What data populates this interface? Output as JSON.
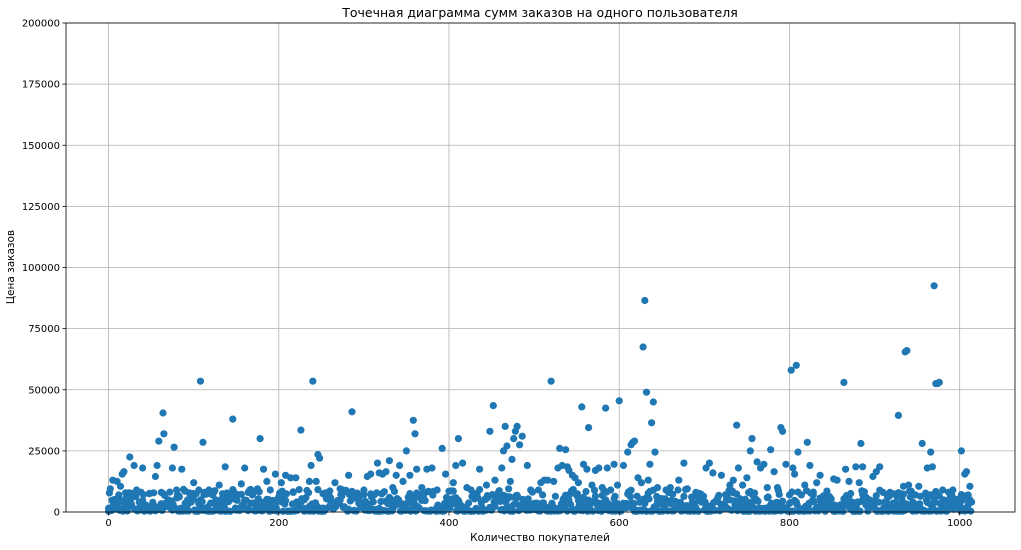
{
  "chart_data": {
    "type": "scatter",
    "title": "Точечная диаграмма сумм заказов на одного пользователя",
    "xlabel": "Количество покупателей",
    "ylabel": "Цена заказов",
    "xlim": [
      -50,
      1065
    ],
    "ylim": [
      0,
      200000
    ],
    "xticks": [
      0,
      200,
      400,
      600,
      800,
      1000
    ],
    "yticks": [
      0,
      25000,
      50000,
      75000,
      100000,
      125000,
      150000,
      175000,
      200000
    ],
    "grid": true,
    "color": "#1f77b4",
    "series": [
      {
        "points": [
          [
            0,
            1500
          ],
          [
            2,
            9500
          ],
          [
            5,
            13000
          ],
          [
            8,
            4000
          ],
          [
            10,
            12500
          ],
          [
            12,
            7000
          ],
          [
            14,
            10500
          ],
          [
            16,
            15500
          ],
          [
            18,
            16500
          ],
          [
            20,
            3500
          ],
          [
            24,
            5500
          ],
          [
            25,
            22500
          ],
          [
            28,
            6000
          ],
          [
            30,
            19000
          ],
          [
            33,
            9000
          ],
          [
            36,
            4000
          ],
          [
            40,
            18000
          ],
          [
            44,
            2500
          ],
          [
            48,
            7500
          ],
          [
            52,
            3000
          ],
          [
            55,
            14500
          ],
          [
            57,
            19000
          ],
          [
            59,
            29000
          ],
          [
            62,
            8000
          ],
          [
            64,
            40500
          ],
          [
            65,
            32000
          ],
          [
            70,
            5000
          ],
          [
            75,
            18000
          ],
          [
            77,
            26500
          ],
          [
            80,
            9000
          ],
          [
            83,
            6500
          ],
          [
            86,
            17500
          ],
          [
            90,
            8500
          ],
          [
            93,
            5000
          ],
          [
            97,
            4000
          ],
          [
            100,
            12000
          ],
          [
            103,
            7500
          ],
          [
            106,
            9000
          ],
          [
            108,
            53500
          ],
          [
            111,
            28500
          ],
          [
            113,
            8000
          ],
          [
            118,
            9000
          ],
          [
            122,
            7000
          ],
          [
            126,
            5000
          ],
          [
            130,
            11000
          ],
          [
            134,
            7500
          ],
          [
            137,
            18500
          ],
          [
            140,
            6500
          ],
          [
            146,
            38000
          ],
          [
            150,
            5500
          ],
          [
            156,
            11500
          ],
          [
            160,
            18000
          ],
          [
            164,
            8000
          ],
          [
            170,
            3500
          ],
          [
            175,
            9500
          ],
          [
            178,
            30000
          ],
          [
            182,
            17500
          ],
          [
            186,
            12500
          ],
          [
            190,
            9000
          ],
          [
            196,
            15500
          ],
          [
            200,
            6000
          ],
          [
            203,
            12000
          ],
          [
            208,
            15000
          ],
          [
            214,
            14000
          ],
          [
            217,
            8000
          ],
          [
            220,
            14000
          ],
          [
            226,
            33500
          ],
          [
            230,
            5000
          ],
          [
            236,
            12500
          ],
          [
            238,
            19000
          ],
          [
            240,
            53500
          ],
          [
            244,
            12500
          ],
          [
            246,
            23500
          ],
          [
            248,
            22000
          ],
          [
            252,
            7500
          ],
          [
            256,
            6000
          ],
          [
            260,
            2500
          ],
          [
            266,
            12000
          ],
          [
            272,
            9500
          ],
          [
            276,
            8000
          ],
          [
            282,
            15000
          ],
          [
            286,
            41000
          ],
          [
            290,
            7000
          ],
          [
            296,
            4000
          ],
          [
            300,
            9000
          ],
          [
            304,
            14500
          ],
          [
            308,
            15500
          ],
          [
            312,
            7000
          ],
          [
            316,
            20000
          ],
          [
            318,
            16000
          ],
          [
            322,
            15500
          ],
          [
            326,
            16500
          ],
          [
            330,
            21000
          ],
          [
            334,
            10000
          ],
          [
            338,
            15000
          ],
          [
            342,
            19000
          ],
          [
            346,
            12500
          ],
          [
            350,
            25000
          ],
          [
            354,
            15000
          ],
          [
            358,
            37500
          ],
          [
            360,
            32000
          ],
          [
            362,
            17500
          ],
          [
            368,
            10000
          ],
          [
            374,
            17500
          ],
          [
            380,
            18000
          ],
          [
            386,
            9000
          ],
          [
            392,
            26000
          ],
          [
            396,
            15500
          ],
          [
            400,
            8500
          ],
          [
            405,
            12000
          ],
          [
            408,
            19000
          ],
          [
            411,
            30000
          ],
          [
            416,
            20000
          ],
          [
            421,
            10000
          ],
          [
            426,
            9000
          ],
          [
            431,
            7500
          ],
          [
            436,
            17500
          ],
          [
            444,
            11000
          ],
          [
            448,
            33000
          ],
          [
            452,
            43500
          ],
          [
            454,
            13000
          ],
          [
            458,
            8000
          ],
          [
            462,
            18000
          ],
          [
            464,
            25000
          ],
          [
            466,
            35000
          ],
          [
            468,
            27000
          ],
          [
            470,
            9500
          ],
          [
            472,
            12500
          ],
          [
            474,
            21500
          ],
          [
            476,
            30000
          ],
          [
            478,
            33000
          ],
          [
            480,
            35000
          ],
          [
            483,
            27500
          ],
          [
            486,
            31000
          ],
          [
            492,
            19000
          ],
          [
            496,
            9000
          ],
          [
            500,
            3500
          ],
          [
            505,
            9000
          ],
          [
            508,
            12000
          ],
          [
            512,
            13000
          ],
          [
            516,
            13000
          ],
          [
            520,
            53500
          ],
          [
            523,
            12500
          ],
          [
            528,
            18000
          ],
          [
            530,
            26000
          ],
          [
            533,
            19000
          ],
          [
            537,
            25500
          ],
          [
            539,
            18500
          ],
          [
            541,
            17000
          ],
          [
            545,
            15000
          ],
          [
            548,
            14000
          ],
          [
            552,
            12000
          ],
          [
            556,
            43000
          ],
          [
            558,
            19500
          ],
          [
            562,
            17500
          ],
          [
            564,
            34500
          ],
          [
            568,
            11000
          ],
          [
            572,
            17000
          ],
          [
            576,
            18000
          ],
          [
            580,
            10000
          ],
          [
            584,
            42500
          ],
          [
            586,
            18000
          ],
          [
            590,
            9000
          ],
          [
            594,
            19500
          ],
          [
            598,
            11000
          ],
          [
            600,
            45500
          ],
          [
            605,
            19000
          ],
          [
            610,
            24500
          ],
          [
            614,
            27500
          ],
          [
            616,
            28500
          ],
          [
            618,
            29000
          ],
          [
            622,
            14000
          ],
          [
            626,
            12000
          ],
          [
            628,
            67500
          ],
          [
            630,
            86500
          ],
          [
            632,
            49000
          ],
          [
            634,
            13000
          ],
          [
            636,
            19500
          ],
          [
            638,
            36500
          ],
          [
            640,
            45000
          ],
          [
            642,
            24500
          ],
          [
            645,
            10000
          ],
          [
            650,
            5500
          ],
          [
            655,
            9000
          ],
          [
            660,
            10000
          ],
          [
            665,
            4000
          ],
          [
            670,
            13000
          ],
          [
            676,
            20000
          ],
          [
            680,
            9500
          ],
          [
            686,
            4000
          ],
          [
            690,
            8000
          ],
          [
            696,
            5000
          ],
          [
            702,
            18000
          ],
          [
            706,
            20000
          ],
          [
            710,
            16000
          ],
          [
            716,
            6000
          ],
          [
            720,
            15000
          ],
          [
            726,
            5000
          ],
          [
            730,
            11000
          ],
          [
            734,
            13000
          ],
          [
            738,
            35500
          ],
          [
            740,
            18000
          ],
          [
            745,
            11000
          ],
          [
            750,
            14000
          ],
          [
            754,
            25000
          ],
          [
            756,
            30000
          ],
          [
            760,
            5000
          ],
          [
            762,
            20500
          ],
          [
            766,
            18000
          ],
          [
            770,
            19500
          ],
          [
            774,
            10000
          ],
          [
            778,
            25500
          ],
          [
            782,
            16500
          ],
          [
            786,
            10000
          ],
          [
            790,
            34500
          ],
          [
            792,
            33000
          ],
          [
            796,
            19500
          ],
          [
            800,
            7000
          ],
          [
            802,
            58000
          ],
          [
            804,
            18000
          ],
          [
            806,
            15500
          ],
          [
            808,
            60000
          ],
          [
            810,
            24500
          ],
          [
            814,
            7000
          ],
          [
            818,
            11000
          ],
          [
            821,
            28500
          ],
          [
            824,
            19000
          ],
          [
            828,
            7000
          ],
          [
            832,
            12000
          ],
          [
            836,
            15000
          ],
          [
            840,
            4000
          ],
          [
            846,
            6000
          ],
          [
            852,
            13500
          ],
          [
            856,
            13000
          ],
          [
            860,
            3000
          ],
          [
            864,
            53000
          ],
          [
            866,
            17500
          ],
          [
            870,
            12500
          ],
          [
            874,
            4000
          ],
          [
            878,
            18500
          ],
          [
            882,
            12000
          ],
          [
            884,
            28000
          ],
          [
            886,
            18500
          ],
          [
            890,
            6000
          ],
          [
            894,
            5000
          ],
          [
            898,
            14500
          ],
          [
            902,
            16500
          ],
          [
            906,
            18500
          ],
          [
            910,
            8000
          ],
          [
            914,
            4000
          ],
          [
            918,
            8000
          ],
          [
            922,
            7500
          ],
          [
            926,
            6500
          ],
          [
            928,
            39500
          ],
          [
            932,
            5500
          ],
          [
            934,
            10500
          ],
          [
            936,
            65500
          ],
          [
            938,
            66000
          ],
          [
            940,
            11000
          ],
          [
            945,
            4000
          ],
          [
            948,
            7000
          ],
          [
            952,
            10500
          ],
          [
            956,
            28000
          ],
          [
            960,
            7500
          ],
          [
            962,
            18000
          ],
          [
            966,
            24500
          ],
          [
            968,
            18500
          ],
          [
            970,
            92500
          ],
          [
            972,
            52500
          ],
          [
            974,
            52500
          ],
          [
            976,
            53000
          ],
          [
            980,
            9000
          ],
          [
            984,
            4500
          ],
          [
            988,
            3000
          ],
          [
            992,
            9000
          ],
          [
            996,
            2500
          ],
          [
            1000,
            5500
          ],
          [
            1002,
            25000
          ],
          [
            1006,
            15500
          ],
          [
            1008,
            16500
          ],
          [
            1010,
            3000
          ],
          [
            1012,
            10500
          ]
        ]
      }
    ]
  }
}
